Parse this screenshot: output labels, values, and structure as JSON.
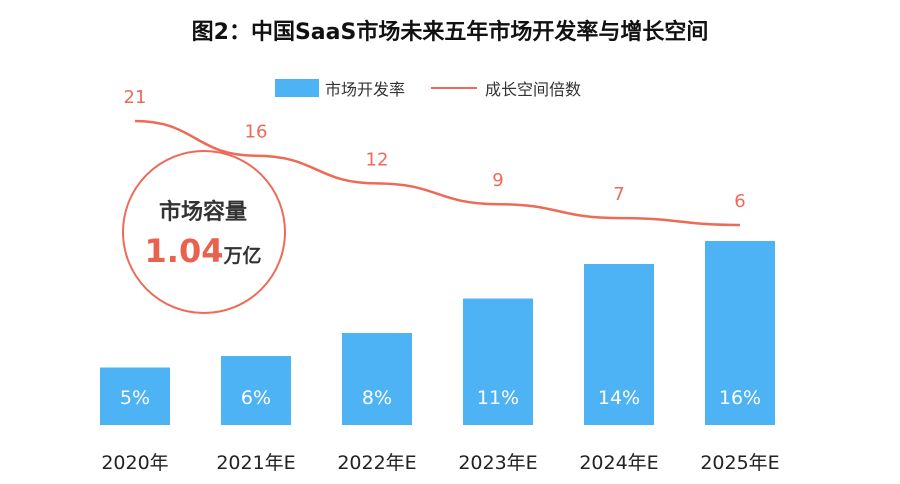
{
  "title": "图2：中国SaaS市场未来五年市场开发率与增长空间",
  "legend": {
    "bar_label": "市场开发率",
    "line_label": "成长空间倍数"
  },
  "callout": {
    "title": "市场容量",
    "value": "1.04",
    "unit": "万亿"
  },
  "colors": {
    "bar": "#4db3f5",
    "line": "#ee6a58",
    "circle": "#ee6a58"
  },
  "chart_data": {
    "type": "bar",
    "categories": [
      "2020年",
      "2021年E",
      "2022年E",
      "2023年E",
      "2024年E",
      "2025年E"
    ],
    "series": [
      {
        "name": "市场开发率",
        "type": "bar",
        "values": [
          5,
          6,
          8,
          11,
          14,
          16
        ],
        "labels": [
          "5%",
          "6%",
          "8%",
          "11%",
          "14%",
          "16%"
        ]
      },
      {
        "name": "成长空间倍数",
        "type": "line",
        "values": [
          21,
          16,
          12,
          9,
          7,
          6
        ],
        "labels": [
          "21",
          "16",
          "12",
          "9",
          "7",
          "6"
        ]
      }
    ],
    "xlabel": "",
    "ylabel": "",
    "grid": false,
    "legend_position": "top"
  }
}
